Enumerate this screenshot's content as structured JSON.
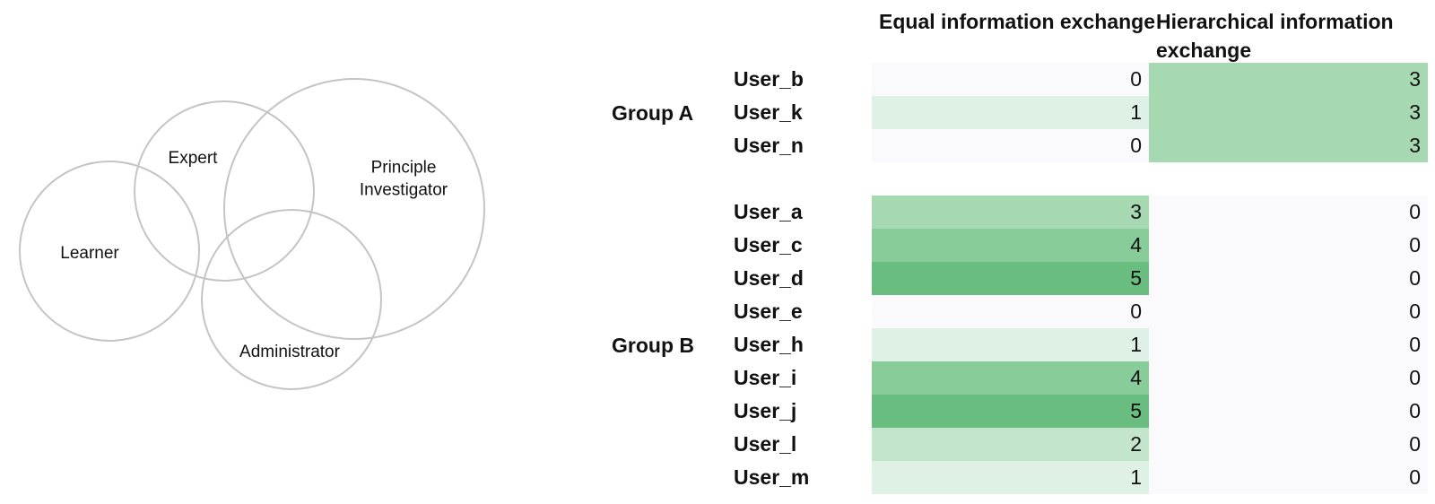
{
  "venn": {
    "circles": [
      {
        "name": "Learner",
        "label_lines": [
          "Learner"
        ]
      },
      {
        "name": "Expert",
        "label_lines": [
          "Expert"
        ]
      },
      {
        "name": "Principle Investigator",
        "label_lines": [
          "Principle",
          "Investigator"
        ]
      },
      {
        "name": "Administrator",
        "label_lines": [
          "Administrator"
        ]
      }
    ]
  },
  "table": {
    "columns": [
      {
        "label": "Equal information exchange"
      },
      {
        "label": "Hierarchical information exchange"
      }
    ],
    "groups": [
      {
        "label": "Group A",
        "rows": [
          {
            "user": "User_b",
            "equal": 0,
            "hierarchical": 3
          },
          {
            "user": "User_k",
            "equal": 1,
            "hierarchical": 3
          },
          {
            "user": "User_n",
            "equal": 0,
            "hierarchical": 3
          }
        ]
      },
      {
        "label": "Group B",
        "rows": [
          {
            "user": "User_a",
            "equal": 3,
            "hierarchical": 0
          },
          {
            "user": "User_c",
            "equal": 4,
            "hierarchical": 0
          },
          {
            "user": "User_d",
            "equal": 5,
            "hierarchical": 0
          },
          {
            "user": "User_e",
            "equal": 0,
            "hierarchical": 0
          },
          {
            "user": "User_h",
            "equal": 1,
            "hierarchical": 0
          },
          {
            "user": "User_i",
            "equal": 4,
            "hierarchical": 0
          },
          {
            "user": "User_j",
            "equal": 5,
            "hierarchical": 0
          },
          {
            "user": "User_l",
            "equal": 2,
            "hierarchical": 0
          },
          {
            "user": "User_m",
            "equal": 1,
            "hierarchical": 0
          }
        ]
      }
    ],
    "color_scale": [
      "#fafafc",
      "#dff0e4",
      "#c2e5cb",
      "#a6d9b2",
      "#88cc99",
      "#69bd7f"
    ]
  }
}
